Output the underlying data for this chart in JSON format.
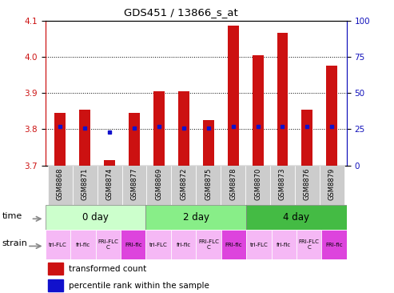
{
  "title": "GDS451 / 13866_s_at",
  "samples": [
    "GSM8868",
    "GSM8871",
    "GSM8874",
    "GSM8877",
    "GSM8869",
    "GSM8872",
    "GSM8875",
    "GSM8878",
    "GSM8870",
    "GSM8873",
    "GSM8876",
    "GSM8879"
  ],
  "transformed_count": [
    3.845,
    3.855,
    3.715,
    3.845,
    3.905,
    3.905,
    3.825,
    4.085,
    4.005,
    4.065,
    3.855,
    3.975
  ],
  "percentile_rank": [
    27,
    26,
    23,
    26,
    27,
    26,
    26,
    27,
    27,
    27,
    27,
    27
  ],
  "ylim_left": [
    3.7,
    4.1
  ],
  "ylim_right": [
    0,
    100
  ],
  "yticks_left": [
    3.7,
    3.8,
    3.9,
    4.0,
    4.1
  ],
  "yticks_right": [
    0,
    25,
    50,
    75,
    100
  ],
  "bar_color": "#CC1111",
  "blue_color": "#1111CC",
  "time_groups": [
    {
      "label": "0 day",
      "start": 0,
      "end": 4,
      "color": "#ccffcc"
    },
    {
      "label": "2 day",
      "start": 4,
      "end": 8,
      "color": "#88ee88"
    },
    {
      "label": "4 day",
      "start": 8,
      "end": 12,
      "color": "#44bb44"
    }
  ],
  "strain_labels": [
    "tri-FLC",
    "fri-flc",
    "FRI-FLC\nC",
    "FRI-flc",
    "tri-FLC",
    "fri-flc",
    "FRI-FLC\nC",
    "FRI-flc",
    "tri-FLC",
    "fri-flc",
    "FRI-FLC\nC",
    "FRI-flc"
  ],
  "strain_bg_colors": [
    "#f5b8f5",
    "#f5b8f5",
    "#f5b8f5",
    "#dd44dd",
    "#f5b8f5",
    "#f5b8f5",
    "#f5b8f5",
    "#dd44dd",
    "#f5b8f5",
    "#f5b8f5",
    "#f5b8f5",
    "#dd44dd"
  ],
  "sample_bg_color": "#cccccc",
  "grid_color": "black",
  "left_axis_color": "#CC1111",
  "right_axis_color": "#1111BB",
  "bar_bottom": 3.7,
  "bar_width": 0.45
}
